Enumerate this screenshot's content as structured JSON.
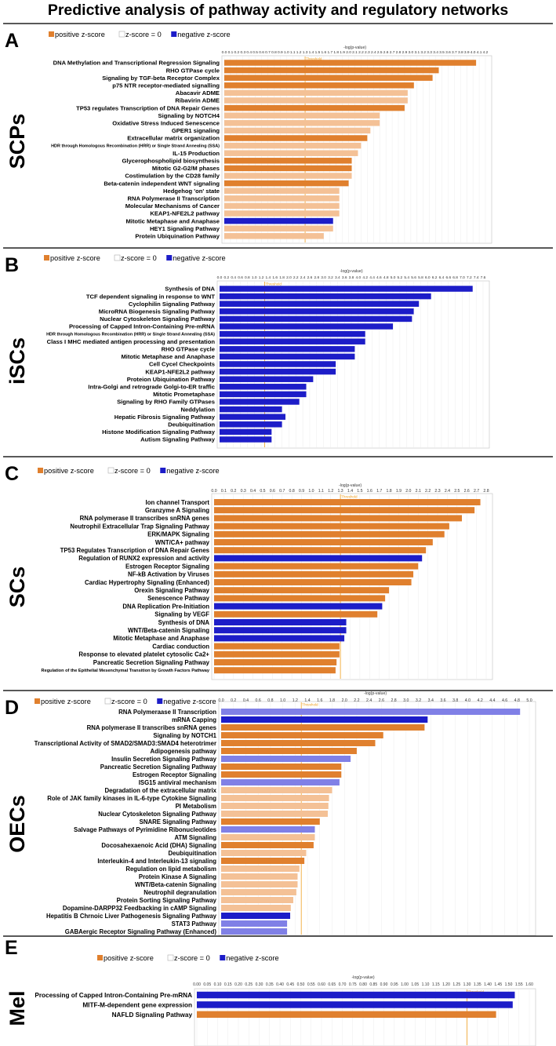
{
  "title": "Predictive analysis of pathway activity and regulatory networks",
  "colors": {
    "strong_pos": "#e0802e",
    "light_pos": "#f4c196",
    "strong_neg": "#1d1dc8",
    "light_neg": "#8080e6",
    "threshold": "#f0a020",
    "zero": "#ffffff"
  },
  "legend": {
    "positive": "positive z-score",
    "zero": "z-score = 0",
    "negative": "negative z-score"
  },
  "xlabel": "-log(p-value)",
  "threshold_label": "Threshold",
  "chart_data": [
    {
      "type": "bar",
      "orientation": "horizontal",
      "panel": "A",
      "group": "SCPs",
      "xlabel": "-log(p-value)",
      "xlim": [
        0,
        4.2
      ],
      "tick_step": 0.1,
      "threshold": 1.3,
      "categories": [
        "DNA Methylation and Transcriptional Regression Signaling",
        "RHO GTPase cycle",
        "Signaling by TGF-beta Receptor Complex",
        "p75 NTR receptor-mediated signalling",
        "Abacavir ADME",
        "Ribavirin ADME",
        "TP53 regulates Transcription of DNA Repair Genes",
        "Signaling by NOTCH4",
        "Oxidative Stress Induced Senescence",
        "GPER1 signaling",
        "Extracellular matrix organization",
        "HDR through Homologous Recombination (HRR) or Single Strand Annealing (SSA)",
        "IL-15 Production",
        "Glycerophospholipid biosynthesis",
        "Mitotic G2-G2/M phases",
        "Costimulation by the CD28 family",
        "Beta-catenin independent WNT signaling",
        "Hedgehog 'on' state",
        "RNA Polymerase II Transcription",
        "Molecular Mechanisms of Cancer",
        "KEAP1-NFE2L2 pathway",
        "Mitotic Metaphase and Anaphase",
        "HEY1 Signaling Pathway",
        "Protein Ubiquination Pathway"
      ],
      "values": [
        4.05,
        3.45,
        3.35,
        3.05,
        2.95,
        2.95,
        2.9,
        2.5,
        2.5,
        2.35,
        2.3,
        2.2,
        2.15,
        2.05,
        2.05,
        2.05,
        2.0,
        1.85,
        1.85,
        1.85,
        1.85,
        1.75,
        1.75,
        1.6
      ],
      "z": [
        "pos",
        "pos",
        "pos",
        "pos",
        "lpos",
        "lpos",
        "pos",
        "lpos",
        "lpos",
        "lpos",
        "pos",
        "lpos",
        "lpos",
        "pos",
        "pos",
        "lpos",
        "pos",
        "lpos",
        "lpos",
        "lpos",
        "lpos",
        "neg",
        "lpos",
        "lpos"
      ]
    },
    {
      "type": "bar",
      "orientation": "horizontal",
      "panel": "B",
      "group": "iSCs",
      "xlabel": "-log(p-value)",
      "xlim": [
        0,
        7.6
      ],
      "tick_step": 0.2,
      "threshold": 1.3,
      "categories": [
        "Synthesis of DNA",
        "TCF dependent signaling in response to WNT",
        "Cyclophilin Signaling Pathway",
        "MicroRNA Biogenesis Signaling Pathway",
        "Nuclear Cytoskeleton Signaling Pathway",
        "Processing of Capped Intron-Containing Pre-mRNA",
        "HDR through Homologous Recombination (HRR) or Single Strand Annealing (SSA)",
        "Class I MHC mediated antigen processing and presentation",
        "RHO GTPase cycle",
        "Mitotic Metaphase and Anaphase",
        "Cell Cycel Checkpoints",
        "KEAP1-NFE2L2 pathway",
        "Proteion Ubiquination Pathway",
        "Intra-Golgi and retrograde Golgi-to-ER traffic",
        "Mitotic Prometaphase",
        "Signaling by RHO Family GTPases",
        "Neddylation",
        "Hepatic Fibrosis Signaling Pathway",
        "Deubiquitination",
        "Histone Modification Signaling Pathway",
        "Autism Signaling Pathway"
      ],
      "values": [
        7.3,
        6.1,
        5.75,
        5.6,
        5.55,
        5.0,
        4.2,
        4.2,
        3.9,
        3.9,
        3.35,
        3.35,
        2.7,
        2.5,
        2.5,
        2.3,
        1.8,
        1.9,
        1.8,
        1.5,
        1.5
      ],
      "z": [
        "neg",
        "neg",
        "neg",
        "neg",
        "neg",
        "neg",
        "neg",
        "neg",
        "neg",
        "neg",
        "neg",
        "neg",
        "neg",
        "neg",
        "neg",
        "neg",
        "neg",
        "neg",
        "neg",
        "neg",
        "neg"
      ]
    },
    {
      "type": "bar",
      "orientation": "horizontal",
      "panel": "C",
      "group": "SCs",
      "xlabel": "-log(p-value)",
      "xlim": [
        0,
        2.8
      ],
      "tick_step": 0.1,
      "threshold": 1.3,
      "categories": [
        "Ion channel Transport",
        "Granzyme A Signaling",
        "RNA polymerase II transcribes snRNA genes",
        "Neutrophil Extracellular Trap Signaling Pathway",
        "ERK/MAPK Signaling",
        "WNT/CA+ pathway",
        "TP53 Regulates Transcription of DNA Repair Genes",
        "Regulation of RUNX2 expression and activity",
        "Estrogen Receptor Signaling",
        "NF-kB Activation by Viruses",
        "Cardiac Hypertrophy Signaling (Enhanced)",
        "Orexin Signaling Pathway",
        "Senescence Pathway",
        "DNA Replication Pre-Initiation",
        "Signaling by VEGF",
        "Synthesis of DNA",
        "WNT/Beta-catenin Signaling",
        "Mitotic Metaphase and Anaphase",
        "Cardiac conduction",
        "Response to elevated platelet cytosolic Ca2+",
        "Pancreatic Secretion Signaling Pathway",
        "Regulation of the Epithelial Mesenchymal Transition by Growth Factors Pathway"
      ],
      "values": [
        2.74,
        2.68,
        2.55,
        2.42,
        2.37,
        2.25,
        2.18,
        2.14,
        2.1,
        2.05,
        2.03,
        1.8,
        1.76,
        1.73,
        1.68,
        1.36,
        1.36,
        1.34,
        1.29,
        1.29,
        1.26,
        1.25
      ],
      "z": [
        "pos",
        "pos",
        "pos",
        "pos",
        "pos",
        "pos",
        "pos",
        "neg",
        "pos",
        "pos",
        "pos",
        "pos",
        "pos",
        "neg",
        "pos",
        "neg",
        "neg",
        "neg",
        "pos",
        "pos",
        "pos",
        "pos"
      ]
    },
    {
      "type": "bar",
      "orientation": "horizontal",
      "panel": "D",
      "group": "OECs",
      "xlabel": "-log(p-value)",
      "xlim": [
        0,
        5.0
      ],
      "tick_step": 0.2,
      "threshold": 1.3,
      "categories": [
        "RNA Polymeraase II Transcription",
        "mRNA Capping",
        "RNA polymerase II transcribes snRNA genes",
        "Signaling by NOTCH1",
        "Transcriptional Activity of SMAD2/SMAD3:SMAD4 heterotrimer",
        "Adipogenesis pathway",
        "Insulin Secretion Signaling Pathway",
        "Pancreatic Secretion Signaling Pathway",
        "Estrogen Receptor Signaling",
        "ISG15 antiviral mechanism",
        "Degradation of the extracellular matrix",
        "Role of JAK family kinases in IL-6-type Cytokine Signaling",
        "PI Metabolism",
        "Nuclear Cytoskeleton Signaling Pathway",
        "SNARE Signaling Pathway",
        "Salvage Pathways of Pyrimidine Ribonucleotides",
        "ATM Signaling",
        "Docosahexaenoic Acid (DHA) Signaling",
        "Deubiquitination",
        "Interleukin-4 and Interleukin-13 signaling",
        "Regulation on lipid metabolism",
        "Protein Kinase A Signaling",
        "WNT/Beta-catenin Signaling",
        "Neutrophil degranulation",
        "Protein Sorting Signaling Pathway",
        "Dopamine-DARPP32 Feedbacking in cAMP Signaling",
        "Hepatitis B Chrnoic Liver Pathogenesis Signaling Pathway",
        "STAT3 Pathway",
        "GABAergic Receptor Signaling Pathway (Enhanced)"
      ],
      "values": [
        4.85,
        3.35,
        3.3,
        2.63,
        2.5,
        2.2,
        2.1,
        1.95,
        1.95,
        1.92,
        1.8,
        1.75,
        1.74,
        1.73,
        1.6,
        1.52,
        1.52,
        1.5,
        1.38,
        1.35,
        1.27,
        1.24,
        1.24,
        1.22,
        1.17,
        1.13,
        1.12,
        1.07,
        1.07
      ],
      "z": [
        "lneg",
        "neg",
        "pos",
        "pos",
        "pos",
        "pos",
        "lneg",
        "pos",
        "pos",
        "lneg",
        "lpos",
        "lpos",
        "lpos",
        "lpos",
        "pos",
        "lneg",
        "lpos",
        "pos",
        "lpos",
        "pos",
        "lpos",
        "lpos",
        "lpos",
        "lpos",
        "lpos",
        "lpos",
        "neg",
        "lneg",
        "lneg"
      ]
    },
    {
      "type": "bar",
      "orientation": "horizontal",
      "panel": "E",
      "group": "Mel",
      "xlabel": "-log(p-value)",
      "xlim": [
        0,
        1.6
      ],
      "tick_step": 0.05,
      "threshold": 1.3,
      "categories": [
        "Processing of Capped Intron-Containing Pre-mRNA",
        "MITF-M-dependent gene expression",
        "NAFLD Signaling Pathway"
      ],
      "values": [
        1.53,
        1.52,
        1.44
      ],
      "z": [
        "neg",
        "neg",
        "pos"
      ]
    }
  ]
}
